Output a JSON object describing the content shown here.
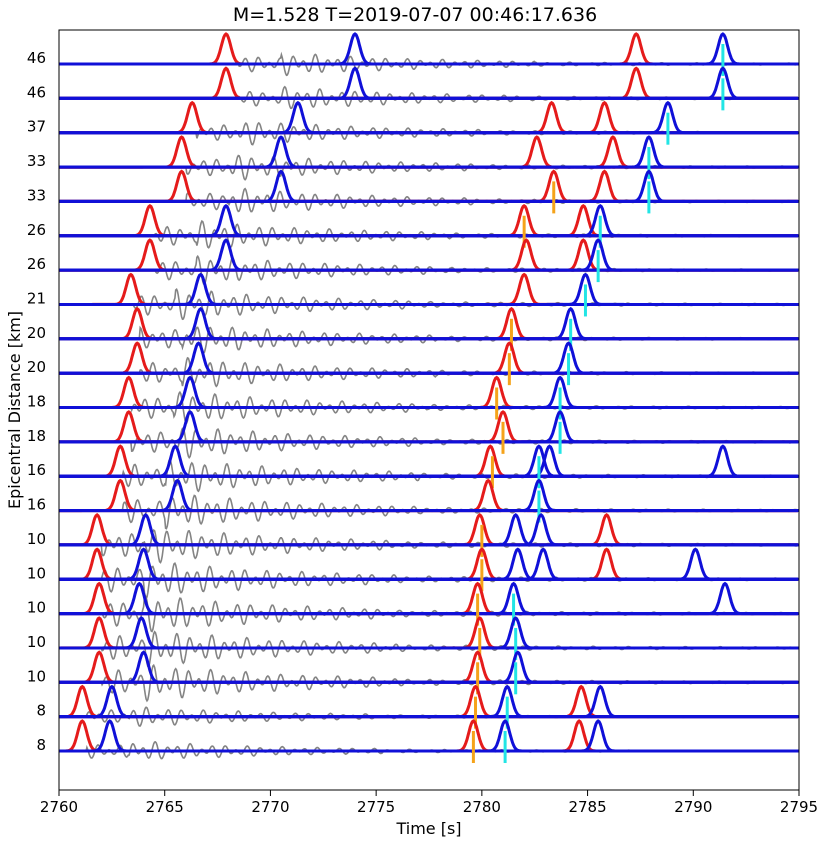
{
  "chart_data": {
    "type": "line",
    "title": "M=1.528  T=2019-07-07 00:46:17.636",
    "xlabel": "Time [s]",
    "ylabel": "Epicentral Distance [km]",
    "xlim": [
      2760,
      2795
    ],
    "xticks": [
      "2760",
      "2765",
      "2770",
      "2775",
      "2780",
      "2785",
      "2790",
      "2795"
    ],
    "grid": false,
    "legend": "none",
    "colors": {
      "waveform": "#6e6e6e",
      "p_prob": "#e51b1b",
      "s_prob": "#1010d8",
      "p_pick": "#f5a31a",
      "s_pick": "#22e5e5"
    },
    "traces": [
      {
        "distance": "46",
        "p": [
          267.9,
          287.3
        ],
        "s": [
          274.0,
          291.4
        ],
        "ppick": [],
        "spick": [
          291.4
        ],
        "amp": 0.55,
        "wstart": 268.5
      },
      {
        "distance": "46",
        "p": [
          267.9,
          287.3
        ],
        "s": [
          274.0,
          291.4
        ],
        "ppick": [],
        "spick": [
          291.4
        ],
        "amp": 0.55,
        "wstart": 268.5
      },
      {
        "distance": "37",
        "p": [
          266.3,
          283.3,
          285.8
        ],
        "s": [
          271.3,
          288.8
        ],
        "ppick": [],
        "spick": [
          288.8
        ],
        "amp": 0.6,
        "wstart": 266.5
      },
      {
        "distance": "33",
        "p": [
          265.8,
          282.6,
          286.2
        ],
        "s": [
          270.5,
          287.9
        ],
        "ppick": [],
        "spick": [
          287.9
        ],
        "amp": 0.65,
        "wstart": 266.0
      },
      {
        "distance": "33",
        "p": [
          265.8,
          283.4,
          285.8
        ],
        "s": [
          270.5,
          287.9
        ],
        "ppick": [
          283.4
        ],
        "spick": [
          287.9
        ],
        "amp": 0.65,
        "wstart": 266.0
      },
      {
        "distance": "26",
        "p": [
          264.3,
          282.0,
          284.8
        ],
        "s": [
          267.9,
          285.6
        ],
        "ppick": [
          282.0
        ],
        "spick": [
          285.6
        ],
        "amp": 0.7,
        "wstart": 264.5
      },
      {
        "distance": "26",
        "p": [
          264.3,
          282.1,
          284.8
        ],
        "s": [
          267.9,
          285.5
        ],
        "ppick": [],
        "spick": [
          285.5
        ],
        "amp": 0.7,
        "wstart": 264.5
      },
      {
        "distance": "21",
        "p": [
          263.4,
          282.0
        ],
        "s": [
          266.7,
          284.9
        ],
        "ppick": [],
        "spick": [
          284.9
        ],
        "amp": 0.75,
        "wstart": 263.5
      },
      {
        "distance": "20",
        "p": [
          263.7,
          281.4
        ],
        "s": [
          266.7,
          284.2
        ],
        "ppick": [
          281.4
        ],
        "spick": [
          284.2
        ],
        "amp": 0.75,
        "wstart": 263.8
      },
      {
        "distance": "20",
        "p": [
          263.7,
          281.3
        ],
        "s": [
          266.6,
          284.1
        ],
        "ppick": [
          281.3
        ],
        "spick": [
          284.1
        ],
        "amp": 0.75,
        "wstart": 263.8
      },
      {
        "distance": "18",
        "p": [
          263.3,
          280.7
        ],
        "s": [
          266.2,
          283.7
        ],
        "ppick": [
          280.7
        ],
        "spick": [
          283.7
        ],
        "amp": 0.8,
        "wstart": 263.4
      },
      {
        "distance": "18",
        "p": [
          263.3,
          281.0
        ],
        "s": [
          266.2,
          283.7
        ],
        "ppick": [
          281.0
        ],
        "spick": [
          283.7
        ],
        "amp": 0.8,
        "wstart": 263.4
      },
      {
        "distance": "16",
        "p": [
          262.9,
          280.4
        ],
        "s": [
          265.5,
          282.7,
          283.2,
          291.4
        ],
        "ppick": [
          280.5
        ],
        "spick": [
          282.7
        ],
        "amp": 0.85,
        "wstart": 263.0
      },
      {
        "distance": "16",
        "p": [
          262.9,
          280.3
        ],
        "s": [
          265.6,
          282.7
        ],
        "ppick": [],
        "spick": [
          282.7
        ],
        "amp": 0.85,
        "wstart": 263.0
      },
      {
        "distance": "10",
        "p": [
          261.8,
          279.9,
          285.9
        ],
        "s": [
          264.1,
          281.6,
          282.8
        ],
        "ppick": [
          280.0
        ],
        "spick": [],
        "amp": 0.9,
        "wstart": 262.0
      },
      {
        "distance": "10",
        "p": [
          261.8,
          280.0,
          285.9
        ],
        "s": [
          264.0,
          281.7,
          282.9,
          290.1
        ],
        "ppick": [
          280.0
        ],
        "spick": [],
        "amp": 0.9,
        "wstart": 262.0
      },
      {
        "distance": "10",
        "p": [
          261.9,
          279.8
        ],
        "s": [
          263.8,
          281.5,
          291.5
        ],
        "ppick": [
          279.8
        ],
        "spick": [
          281.5
        ],
        "amp": 0.9,
        "wstart": 262.0
      },
      {
        "distance": "10",
        "p": [
          261.9,
          279.9
        ],
        "s": [
          263.9,
          281.6
        ],
        "ppick": [
          279.9
        ],
        "spick": [
          281.6
        ],
        "amp": 0.9,
        "wstart": 262.0
      },
      {
        "distance": "10",
        "p": [
          261.9,
          279.8
        ],
        "s": [
          264.0,
          281.7
        ],
        "ppick": [
          279.8
        ],
        "spick": [
          281.6
        ],
        "amp": 0.9,
        "wstart": 262.0
      },
      {
        "distance": "8",
        "p": [
          261.1,
          279.7,
          284.7
        ],
        "s": [
          262.5,
          281.2,
          285.6
        ],
        "ppick": [
          279.7
        ],
        "spick": [
          281.2
        ],
        "amp": 0.5,
        "wstart": 261.3
      },
      {
        "distance": "8",
        "p": [
          261.1,
          279.6,
          284.6
        ],
        "s": [
          262.4,
          281.1,
          285.5
        ],
        "ppick": [
          279.6
        ],
        "spick": [
          281.1
        ],
        "amp": 0.5,
        "wstart": 261.3
      }
    ]
  }
}
